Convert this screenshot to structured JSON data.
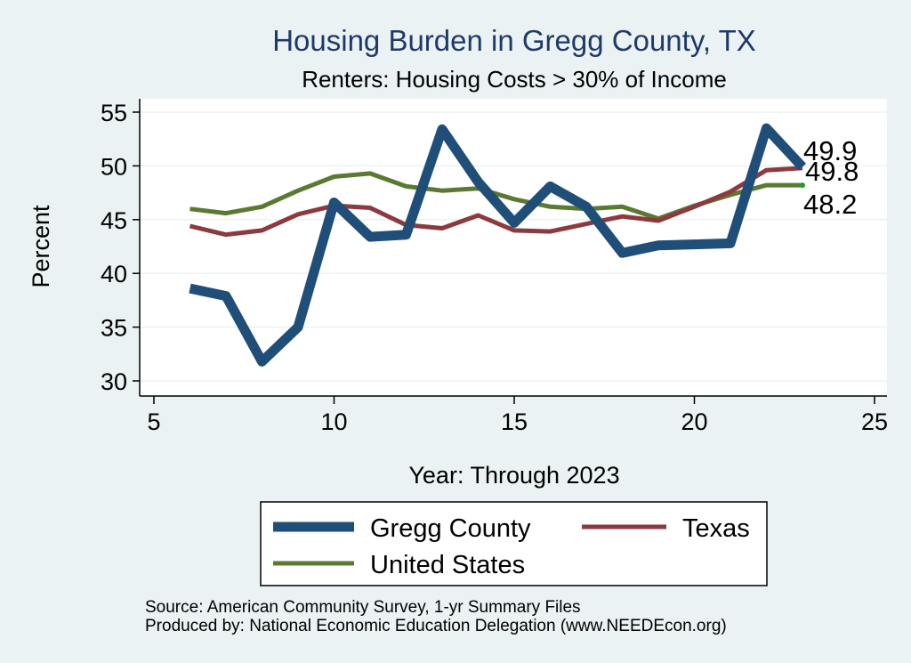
{
  "chart_data": {
    "type": "line",
    "title": "Housing Burden in Gregg County, TX",
    "subtitle": "Renters: Housing Costs > 30% of Income",
    "xlabel": "Year: Through 2023",
    "ylabel": "Percent",
    "xlim": [
      5,
      25
    ],
    "ylim": [
      30,
      55
    ],
    "xticks": [
      5,
      10,
      15,
      20,
      25
    ],
    "yticks": [
      30,
      35,
      40,
      45,
      50,
      55
    ],
    "grid": true,
    "legend_position": "bottom",
    "series": [
      {
        "name": "Gregg County",
        "color": "#1f4e79",
        "x": [
          6,
          7,
          8,
          9,
          10,
          11,
          12,
          13,
          14,
          15,
          16,
          17,
          18,
          19,
          20,
          21,
          22,
          23
        ],
        "values": [
          38.6,
          37.9,
          31.8,
          35.0,
          46.6,
          43.4,
          43.6,
          53.4,
          48.5,
          44.7,
          48.1,
          46.2,
          41.9,
          42.6,
          42.7,
          42.8,
          53.5,
          49.9
        ],
        "end_label": "49.9"
      },
      {
        "name": "Texas",
        "color": "#8b3a3f",
        "x": [
          6,
          7,
          8,
          9,
          10,
          11,
          12,
          13,
          14,
          15,
          16,
          17,
          18,
          19,
          20,
          21,
          22,
          23
        ],
        "values": [
          44.4,
          43.6,
          44.0,
          45.5,
          46.3,
          46.1,
          44.5,
          44.2,
          45.4,
          44.0,
          43.9,
          44.6,
          45.3,
          44.9,
          46.2,
          47.6,
          49.6,
          49.8
        ],
        "end_label": "49.8"
      },
      {
        "name": "United States",
        "color": "#5a7a32",
        "x": [
          6,
          7,
          8,
          9,
          10,
          11,
          12,
          13,
          14,
          15,
          16,
          17,
          18,
          19,
          20,
          21,
          22,
          23
        ],
        "values": [
          46.0,
          45.6,
          46.2,
          47.7,
          49.0,
          49.3,
          48.1,
          47.7,
          47.9,
          46.9,
          46.2,
          46.0,
          46.2,
          45.1,
          46.3,
          47.3,
          48.2,
          48.2
        ],
        "end_label": "48.2"
      }
    ]
  },
  "notes": {
    "source": "Source: American Community Survey, 1-yr Summary Files",
    "producer": "Produced by: National Economic Education Delegation (www.NEEDEcon.org)"
  }
}
